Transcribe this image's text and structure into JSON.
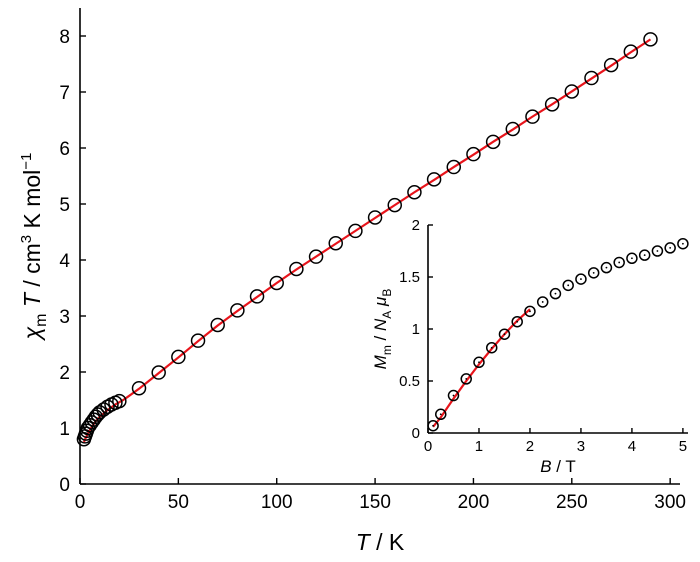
{
  "chart_data": [
    {
      "type": "scatter",
      "xlabel": {
        "var": "T",
        "unit": " / K"
      },
      "ylabel": {
        "var": "χ",
        "sub": "m",
        "var2": " T",
        "unit": " / cm",
        "sup": "3",
        "unit2": " K mol",
        "sup2": "−1"
      },
      "xlim": [
        0,
        305
      ],
      "ylim": [
        0,
        8.5
      ],
      "xticks": [
        0,
        50,
        100,
        150,
        200,
        250,
        300
      ],
      "yticks": [
        0,
        1,
        2,
        3,
        4,
        5,
        6,
        7,
        8
      ],
      "marker_color": "#000000",
      "fit_color": "#e8141b",
      "series": [
        {
          "kind": "markers",
          "x": [
            2,
            2.5,
            3,
            3.5,
            4,
            5,
            6,
            7,
            8,
            9,
            10,
            12,
            14,
            16,
            18,
            20,
            30,
            40,
            50,
            60,
            70,
            80,
            90,
            100,
            110,
            120,
            130,
            140,
            150,
            160,
            170,
            180,
            190,
            200,
            210,
            220,
            230,
            240,
            250,
            260,
            270,
            280,
            290
          ],
          "y": [
            0.8,
            0.85,
            0.9,
            0.95,
            1.0,
            1.05,
            1.1,
            1.15,
            1.2,
            1.24,
            1.28,
            1.33,
            1.38,
            1.42,
            1.45,
            1.48,
            1.71,
            1.99,
            2.27,
            2.56,
            2.84,
            3.1,
            3.35,
            3.59,
            3.84,
            4.06,
            4.3,
            4.52,
            4.76,
            4.98,
            5.21,
            5.44,
            5.66,
            5.89,
            6.11,
            6.34,
            6.56,
            6.78,
            7.01,
            7.25,
            7.48,
            7.72,
            7.94
          ]
        },
        {
          "kind": "fit",
          "x": [
            2,
            3,
            4,
            6,
            8,
            10,
            14,
            18,
            22,
            30,
            40,
            50,
            60,
            70,
            80,
            90,
            100,
            110,
            120,
            130,
            140,
            150,
            160,
            170,
            180,
            190,
            200,
            210,
            220,
            230,
            240,
            250,
            260,
            270,
            280,
            290
          ],
          "y": [
            0.75,
            0.83,
            0.9,
            1.02,
            1.12,
            1.2,
            1.32,
            1.42,
            1.5,
            1.7,
            1.98,
            2.26,
            2.55,
            2.83,
            3.09,
            3.34,
            3.59,
            3.83,
            4.06,
            4.29,
            4.52,
            4.75,
            4.98,
            5.21,
            5.43,
            5.66,
            5.88,
            6.11,
            6.33,
            6.56,
            6.78,
            7.01,
            7.24,
            7.47,
            7.71,
            7.94
          ]
        }
      ]
    },
    {
      "type": "scatter",
      "inset": true,
      "xlabel": {
        "var": "B",
        "unit": " / T"
      },
      "ylabel": {
        "var": "M",
        "sub": "m",
        "unit": " / ",
        "var2": "N",
        "sub2": "A",
        "var3": " μ",
        "sub3": "B"
      },
      "xlim": [
        0,
        5.1
      ],
      "ylim": [
        0,
        2
      ],
      "xticks": [
        0,
        1,
        2,
        3,
        4,
        5
      ],
      "yticks": [
        0,
        0.5,
        1,
        1.5,
        2
      ],
      "ytick_labels": [
        "0",
        "0.5",
        "1",
        "1.5",
        "2"
      ],
      "series": [
        {
          "kind": "markers",
          "x": [
            0.1,
            0.25,
            0.5,
            0.75,
            1.0,
            1.25,
            1.5,
            1.75,
            2.0,
            2.25,
            2.5,
            2.75,
            3.0,
            3.25,
            3.5,
            3.75,
            4.0,
            4.25,
            4.5,
            4.75,
            5.0
          ],
          "y": [
            0.07,
            0.18,
            0.36,
            0.52,
            0.68,
            0.82,
            0.95,
            1.07,
            1.17,
            1.26,
            1.34,
            1.42,
            1.48,
            1.54,
            1.59,
            1.64,
            1.68,
            1.71,
            1.75,
            1.78,
            1.82
          ]
        },
        {
          "kind": "fit",
          "x": [
            0.1,
            0.25,
            0.5,
            0.75,
            1.0,
            1.25,
            1.5,
            1.75,
            2.0
          ],
          "y": [
            0.06,
            0.15,
            0.33,
            0.5,
            0.66,
            0.81,
            0.95,
            1.08,
            1.19
          ]
        }
      ]
    }
  ]
}
